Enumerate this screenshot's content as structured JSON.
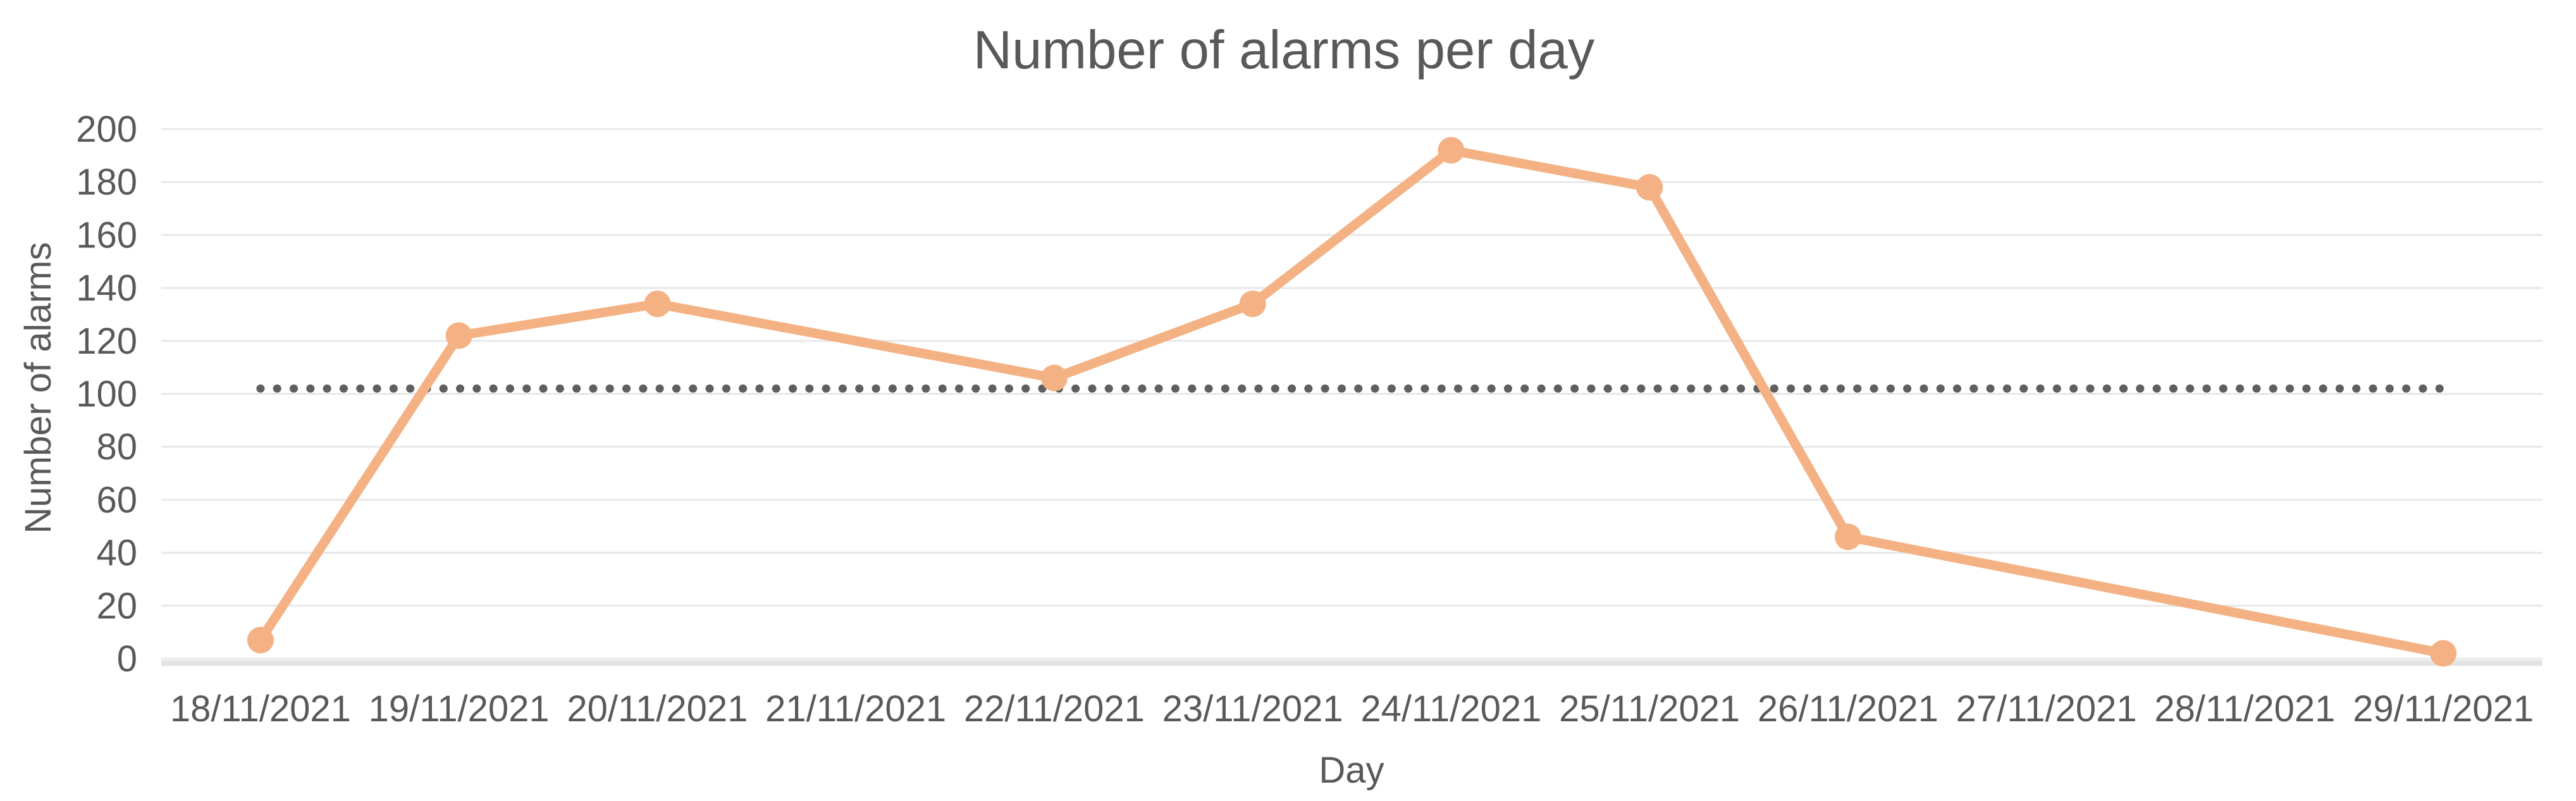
{
  "chart_data": {
    "type": "line",
    "title": "Number of alarms per day",
    "xlabel": "Day",
    "ylabel": "Number of alarms",
    "categories": [
      "18/11/2021",
      "19/11/2021",
      "20/11/2021",
      "21/11/2021",
      "22/11/2021",
      "23/11/2021",
      "24/11/2021",
      "25/11/2021",
      "26/11/2021",
      "27/11/2021",
      "28/11/2021",
      "29/11/2021"
    ],
    "series": [
      {
        "name": "Number of alarms",
        "color": "#F4B183",
        "marker": "circle",
        "values": [
          7,
          122,
          134,
          null,
          106,
          134,
          192,
          178,
          46,
          null,
          null,
          2
        ]
      }
    ],
    "reference_line": {
      "value": 102,
      "style": "dotted",
      "color": "#5F5F5F",
      "extent": "spans from first to last category center"
    },
    "ylim": [
      0,
      200
    ],
    "ytick_step": 20,
    "yticks": [
      "0",
      "20",
      "40",
      "60",
      "80",
      "100",
      "120",
      "140",
      "160",
      "180",
      "200"
    ],
    "grid": "horizontal",
    "legend_position": "none"
  },
  "colors": {
    "series_line": "#F4B183",
    "reference_dotted": "#5F5F5F",
    "gridline": "#E8E8E8",
    "axis_line": "#E3E3E3",
    "text": "#595959",
    "background": "#FFFFFF"
  }
}
